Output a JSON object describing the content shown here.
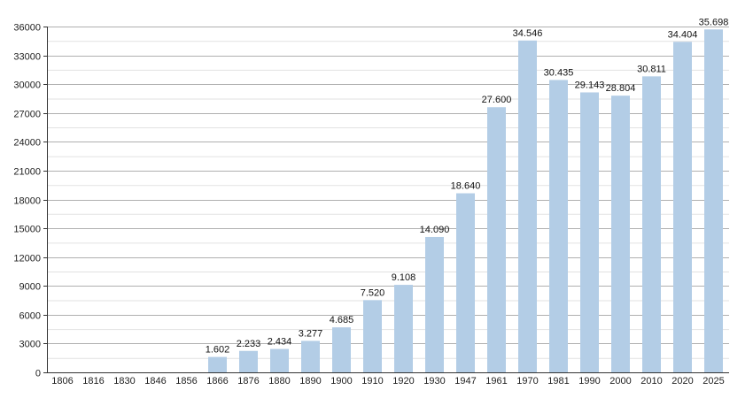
{
  "chart_data": {
    "type": "bar",
    "categories": [
      "1806",
      "1816",
      "1830",
      "1846",
      "1856",
      "1866",
      "1876",
      "1880",
      "1890",
      "1900",
      "1910",
      "1920",
      "1930",
      "1947",
      "1961",
      "1970",
      "1981",
      "1990",
      "2000",
      "2010",
      "2020",
      "2025"
    ],
    "values": [
      null,
      null,
      null,
      null,
      null,
      1602,
      2233,
      2434,
      3277,
      4685,
      7520,
      9108,
      14090,
      18640,
      27600,
      34546,
      30435,
      29143,
      28804,
      30811,
      34404,
      35698
    ],
    "value_labels": [
      "",
      "",
      "",
      "",
      "",
      "1.602",
      "2.233",
      "2.434",
      "3.277",
      "4.685",
      "7.520",
      "9.108",
      "14.090",
      "18.640",
      "27.600",
      "34.546",
      "30.435",
      "29.143",
      "28.804",
      "30.811",
      "34.404",
      "35.698"
    ],
    "y_ticks": [
      0,
      3000,
      6000,
      9000,
      12000,
      15000,
      18000,
      21000,
      24000,
      27000,
      30000,
      33000,
      36000
    ],
    "ylim": [
      0,
      36000
    ],
    "title": "",
    "xlabel": "",
    "ylabel": "",
    "grid": true,
    "legend": "none",
    "bar_color": "#b3cde6",
    "grid_color": "#b0b0b0",
    "minor_grid_color": "#e2e2e2"
  }
}
